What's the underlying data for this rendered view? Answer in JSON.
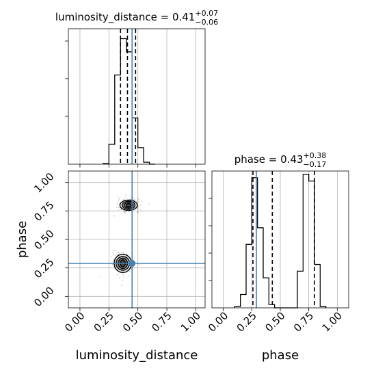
{
  "chart_data": {
    "type": "corner",
    "grid": true,
    "colors": {
      "truth": "#4682b4",
      "hist": "#000000",
      "quantile": "#000000",
      "grid": "#b0b0b0",
      "frame": "#000000",
      "scatter": "#555555"
    },
    "params": [
      {
        "name": "luminosity_distance",
        "xlabel": "luminosity_distance",
        "median": 0.41,
        "truth": 0.45,
        "range": [
          -0.1,
          1.08
        ],
        "ticks": [
          0.0,
          0.25,
          0.5,
          0.75,
          1.0
        ],
        "tick_labels": [
          "0.00",
          "0.25",
          "0.50",
          "0.75",
          "1.00"
        ],
        "title_main": "luminosity_distance = 0.41",
        "title_plus": "+0.07",
        "title_minus": "−0.06",
        "quantiles": [
          0.35,
          0.41,
          0.48
        ],
        "hist": {
          "edges": [
            0.2,
            0.25,
            0.3,
            0.35,
            0.4,
            0.45,
            0.5,
            0.55,
            0.6,
            0.65
          ],
          "counts": [
            1,
            30,
            135,
            190,
            170,
            70,
            25,
            3,
            0
          ]
        },
        "hist_max": 205
      },
      {
        "name": "phase",
        "xlabel": "phase",
        "median": 0.43,
        "truth": 0.29,
        "range": [
          -0.1,
          1.1
        ],
        "ticks": [
          0.0,
          0.25,
          0.5,
          0.75,
          1.0
        ],
        "tick_labels": [
          "0.00",
          "0.25",
          "0.50",
          "0.75",
          "1.00"
        ],
        "title_main": "phase = 0.43",
        "title_plus": "+0.38",
        "title_minus": "−0.17",
        "quantiles": [
          0.26,
          0.43,
          0.8
        ],
        "hist": {
          "edges": [
            0.1,
            0.15,
            0.2,
            0.25,
            0.3,
            0.35,
            0.4,
            0.45,
            0.5,
            0.55,
            0.6,
            0.65,
            0.7,
            0.75,
            0.8,
            0.85,
            0.9
          ],
          "counts": [
            2,
            20,
            95,
            195,
            120,
            45,
            5,
            0,
            0,
            0,
            0,
            55,
            200,
            190,
            65,
            2
          ]
        },
        "hist_max": 205
      }
    ],
    "scatter_2d": {
      "x_param": "luminosity_distance",
      "y_param": "phase",
      "truth_point": [
        0.45,
        0.29
      ],
      "y_ticks": [
        0.0,
        0.25,
        0.5,
        0.75,
        1.0
      ],
      "y_tick_labels": [
        "0.00",
        "0.25",
        "0.50",
        "0.75",
        "1.00"
      ],
      "ylabel": "phase",
      "clusters": [
        {
          "center": [
            0.42,
            0.8
          ],
          "contours": [
            [
              0.075,
              0.045
            ],
            [
              0.055,
              0.035
            ],
            [
              0.04,
              0.025
            ],
            [
              0.022,
              0.015
            ]
          ]
        },
        {
          "center": [
            0.37,
            0.29
          ],
          "contours": [
            [
              0.075,
              0.08
            ],
            [
              0.058,
              0.06
            ],
            [
              0.04,
              0.045
            ],
            [
              0.022,
              0.03
            ]
          ]
        }
      ]
    }
  }
}
